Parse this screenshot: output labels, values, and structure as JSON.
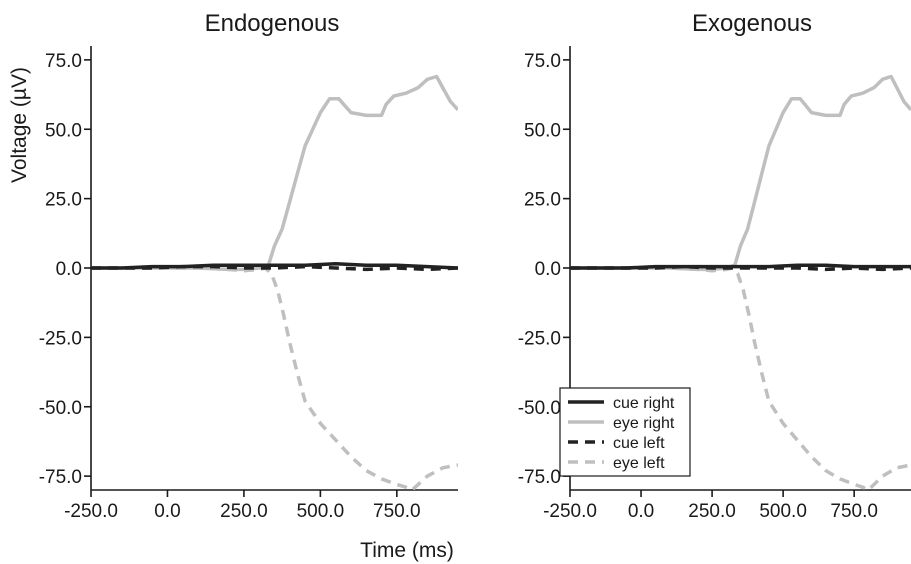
{
  "colors": {
    "cue": "#222222",
    "eye": "#bfbfbf",
    "axis": "#1a1a1a"
  },
  "legend": [
    "cue right",
    "eye right",
    "cue left",
    "eye left"
  ],
  "chart_data": [
    {
      "type": "line",
      "title": "Endogenous",
      "xlabel": "",
      "ylabel": "Voltage (µV)",
      "xlim": [
        -250,
        950
      ],
      "ylim": [
        -80,
        80
      ],
      "xticks": [
        -250,
        0,
        250,
        500,
        750
      ],
      "xtick_labels": [
        "-250.0",
        "0.0",
        "250.0",
        "500.0",
        "750.0"
      ],
      "yticks": [
        75,
        50,
        25,
        0,
        -25,
        -50,
        -75
      ],
      "ytick_labels": [
        "75.0",
        "50.0",
        "25.0",
        "0.0",
        "-25.0",
        "-50.0",
        "-75.0"
      ],
      "grid": false,
      "series": [
        {
          "name": "cue right",
          "style": "solid",
          "color": "cue",
          "x": [
            -250,
            -150,
            -50,
            50,
            150,
            250,
            350,
            450,
            550,
            650,
            750,
            850,
            950
          ],
          "y": [
            0,
            0,
            0.5,
            0.5,
            1,
            1,
            1,
            1,
            1.5,
            1,
            1,
            0.5,
            0
          ]
        },
        {
          "name": "eye right",
          "style": "solid",
          "color": "eye",
          "x": [
            -250,
            -100,
            0,
            100,
            200,
            250,
            300,
            330,
            350,
            375,
            400,
            425,
            450,
            475,
            500,
            530,
            560,
            600,
            650,
            700,
            715,
            740,
            780,
            820,
            850,
            880,
            900,
            925,
            950
          ],
          "y": [
            0,
            0,
            0,
            0,
            -0.5,
            -0.5,
            0,
            1,
            8,
            14,
            24,
            34,
            44,
            50,
            56,
            61,
            61,
            56,
            55,
            55,
            59,
            62,
            63,
            65,
            68,
            69,
            65,
            60,
            57
          ]
        },
        {
          "name": "cue left",
          "style": "dashed",
          "color": "cue",
          "x": [
            -250,
            -150,
            -50,
            50,
            150,
            250,
            350,
            450,
            550,
            650,
            750,
            850,
            950
          ],
          "y": [
            0,
            0,
            0,
            0.5,
            0.5,
            0,
            0,
            0.5,
            0,
            -0.5,
            0,
            -0.5,
            0
          ]
        },
        {
          "name": "eye left",
          "style": "dashed",
          "color": "eye",
          "x": [
            -250,
            -100,
            0,
            100,
            200,
            250,
            300,
            320,
            340,
            360,
            380,
            400,
            425,
            450,
            475,
            500,
            550,
            600,
            650,
            700,
            750,
            780,
            800,
            850,
            900,
            950
          ],
          "y": [
            0,
            0,
            0,
            0,
            -0.5,
            -1,
            -0.5,
            0,
            -2,
            -8,
            -17,
            -27,
            -38,
            -48,
            -52,
            -56,
            -62,
            -68,
            -73,
            -76,
            -78,
            -79,
            -80,
            -75,
            -72,
            -71
          ]
        }
      ]
    },
    {
      "type": "line",
      "title": "Exogenous",
      "xlabel": "Time (ms)",
      "ylabel": "",
      "xlim": [
        -250,
        950
      ],
      "ylim": [
        -80,
        80
      ],
      "xticks": [
        -250,
        0,
        250,
        500,
        750
      ],
      "xtick_labels": [
        "-250.0",
        "0.0",
        "250.0",
        "500.0",
        "750.0"
      ],
      "yticks": [
        75,
        50,
        25,
        0,
        -25,
        -50,
        -75
      ],
      "ytick_labels": [
        "75.0",
        "50.0",
        "25.0",
        "0.0",
        "-25.0",
        "-50.0",
        "-75.0"
      ],
      "grid": false,
      "legend_position": "bottom-left",
      "series": [
        {
          "name": "cue right",
          "style": "solid",
          "color": "cue",
          "x": [
            -250,
            -150,
            -50,
            50,
            150,
            250,
            350,
            450,
            550,
            650,
            750,
            850,
            950
          ],
          "y": [
            0,
            0,
            0,
            0.5,
            0.5,
            0.5,
            0.5,
            0.5,
            1,
            1,
            0.5,
            0.5,
            0.5
          ]
        },
        {
          "name": "eye right",
          "style": "solid",
          "color": "eye",
          "x": [
            -250,
            -100,
            0,
            100,
            200,
            250,
            300,
            330,
            350,
            375,
            400,
            425,
            450,
            475,
            500,
            530,
            560,
            600,
            650,
            700,
            715,
            740,
            780,
            820,
            850,
            880,
            900,
            925,
            950
          ],
          "y": [
            0,
            0,
            0,
            0,
            -0.5,
            -0.5,
            0,
            1,
            8,
            14,
            24,
            34,
            44,
            50,
            56,
            61,
            61,
            56,
            55,
            55,
            59,
            62,
            63,
            65,
            68,
            69,
            65,
            60,
            57
          ]
        },
        {
          "name": "cue left",
          "style": "dashed",
          "color": "cue",
          "x": [
            -250,
            -150,
            -50,
            50,
            150,
            250,
            350,
            450,
            550,
            650,
            750,
            850,
            950
          ],
          "y": [
            0,
            0,
            0,
            0,
            0.5,
            0,
            0,
            0,
            0,
            -0.5,
            0,
            -0.5,
            0
          ]
        },
        {
          "name": "eye left",
          "style": "dashed",
          "color": "eye",
          "x": [
            -250,
            -100,
            0,
            100,
            200,
            250,
            300,
            320,
            340,
            360,
            380,
            400,
            425,
            450,
            475,
            500,
            550,
            600,
            650,
            700,
            750,
            780,
            800,
            850,
            900,
            950
          ],
          "y": [
            0,
            0,
            0,
            0,
            -0.5,
            -1,
            -0.5,
            0,
            -2,
            -8,
            -17,
            -27,
            -38,
            -48,
            -52,
            -56,
            -62,
            -68,
            -73,
            -76,
            -78,
            -79,
            -80,
            -75,
            -72,
            -71
          ]
        }
      ]
    }
  ]
}
